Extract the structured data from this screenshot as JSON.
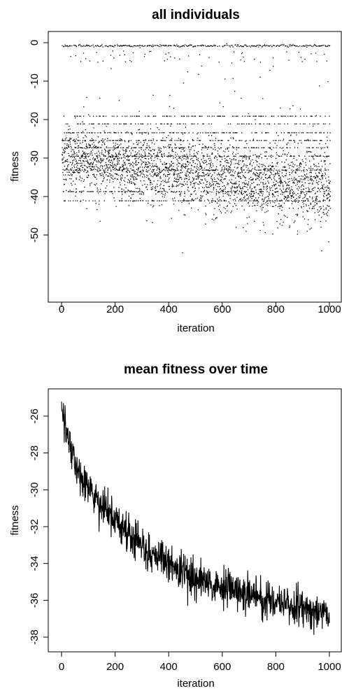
{
  "chart_data": [
    {
      "type": "scatter",
      "title": "all individuals",
      "xlabel": "iteration",
      "ylabel": "fitness",
      "xlim": [
        0,
        1010
      ],
      "ylim": [
        -56,
        1
      ],
      "x_ticks": [
        "0",
        "200",
        "400",
        "600",
        "800",
        "1000"
      ],
      "y_ticks": [
        "0",
        "-10",
        "-20",
        "-30",
        "-40",
        "-50"
      ],
      "grid": false,
      "legend": "none",
      "color": "#000000",
      "distribution": {
        "iterations": [
          0,
          1000
        ],
        "main_band_center_start": -30,
        "main_band_center_end": -38,
        "main_band_range_start": [
          -39,
          -17
        ],
        "main_band_range_end": [
          -46,
          -19
        ],
        "top_line_value": -0.7,
        "secondary_cluster_range": [
          -5,
          -2
        ],
        "horizontal_streaks": [
          -0.7,
          -3.2,
          -19.0,
          -21.0,
          -23.3,
          -25.3,
          -27.2,
          -29.4,
          -33.0,
          -38.6,
          -41.0
        ],
        "min_outlier": -54.5,
        "sparse_outliers_range": [
          -16,
          -5
        ]
      }
    },
    {
      "type": "line",
      "title": "mean fitness over time",
      "xlabel": "iteration",
      "ylabel": "fitness",
      "xlim": [
        0,
        1010
      ],
      "ylim": [
        -38.4,
        -24.9
      ],
      "x_ticks": [
        "0",
        "200",
        "400",
        "600",
        "800",
        "1000"
      ],
      "y_ticks": [
        "-26",
        "-28",
        "-30",
        "-32",
        "-34",
        "-36",
        "-38"
      ],
      "grid": false,
      "legend": "none",
      "color": "#000000",
      "trend": {
        "x": [
          0,
          50,
          100,
          150,
          200,
          250,
          300,
          350,
          400,
          450,
          500,
          550,
          600,
          650,
          700,
          750,
          800,
          850,
          900,
          950,
          1000
        ],
        "y": [
          -25.4,
          -28.6,
          -30.0,
          -31.0,
          -31.7,
          -32.4,
          -33.0,
          -33.6,
          -34.0,
          -34.4,
          -34.8,
          -35.1,
          -35.3,
          -35.5,
          -35.7,
          -35.9,
          -36.1,
          -36.2,
          -36.4,
          -36.6,
          -36.9
        ]
      },
      "noise_amplitude": 0.9,
      "max_value": -25.0,
      "min_value": -38.2
    }
  ]
}
